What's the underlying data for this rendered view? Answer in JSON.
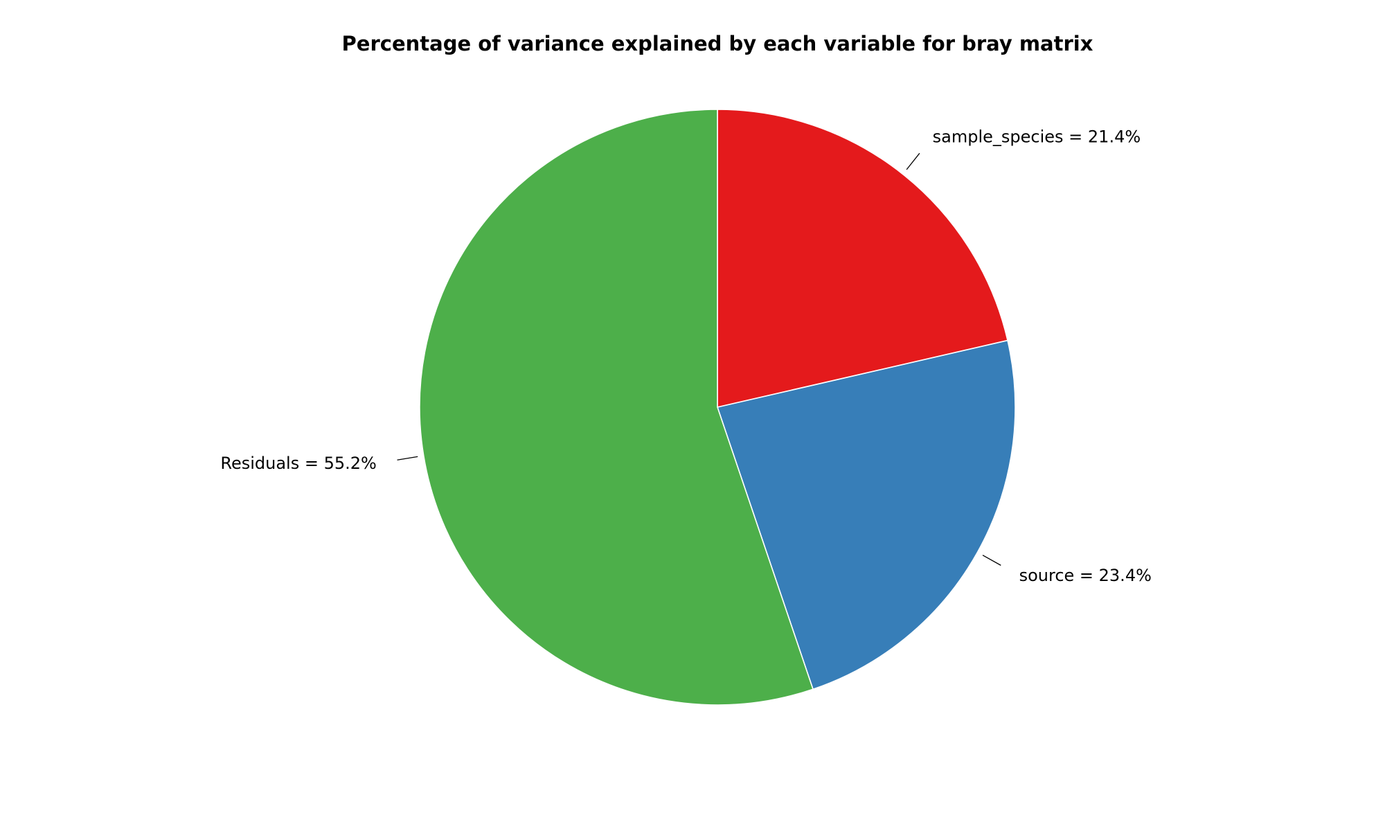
{
  "chart_data": {
    "type": "pie",
    "title": "Percentage of variance explained by each variable for bray matrix",
    "start_angle_deg": 90,
    "direction": "clockwise",
    "slices": [
      {
        "name": "sample_species",
        "value": 21.4,
        "label": "sample_species = 21.4%",
        "color": "#e41a1c"
      },
      {
        "name": "source",
        "value": 23.4,
        "label": "source = 23.4%",
        "color": "#377eb8"
      },
      {
        "name": "Residuals",
        "value": 55.2,
        "label": "Residuals = 55.2%",
        "color": "#4daf4a"
      }
    ],
    "edge_color": "#ffffff",
    "legend": "none"
  }
}
